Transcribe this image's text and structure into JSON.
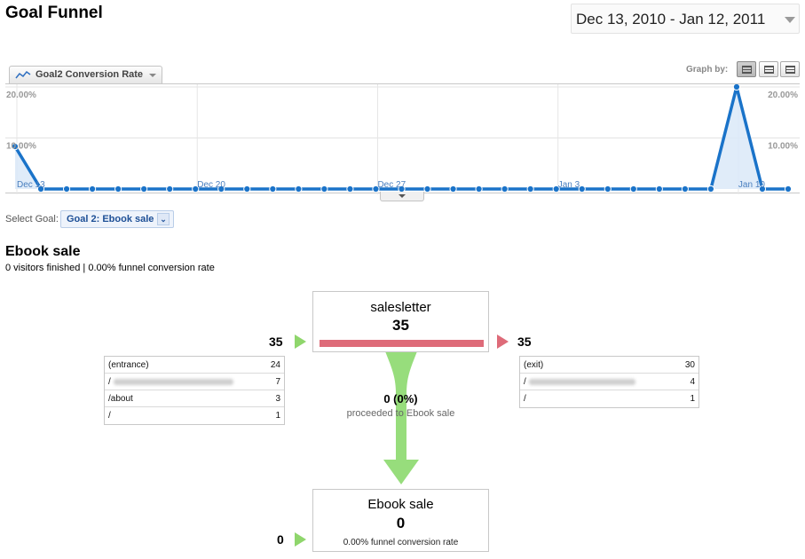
{
  "header": {
    "title": "Goal Funnel",
    "date_range": "Dec 13, 2010 - Jan 12, 2011"
  },
  "graph": {
    "metric_label": "Goal2 Conversion Rate",
    "graph_by_label": "Graph by:",
    "y_ticks_left": [
      "20.00%",
      "10.00%"
    ],
    "y_ticks_right": [
      "20.00%",
      "10.00%"
    ],
    "x_ticks": [
      "Dec 13",
      "Dec 20",
      "Dec 27",
      "Jan 3",
      "Jan 10"
    ],
    "line_color": "#1a73c9",
    "fill_color": "#dbe9f8"
  },
  "chart_data": {
    "type": "area",
    "x": [
      "Dec 13",
      "Dec 14",
      "Dec 15",
      "Dec 16",
      "Dec 17",
      "Dec 18",
      "Dec 19",
      "Dec 20",
      "Dec 21",
      "Dec 22",
      "Dec 23",
      "Dec 24",
      "Dec 25",
      "Dec 26",
      "Dec 27",
      "Dec 28",
      "Dec 29",
      "Dec 30",
      "Dec 31",
      "Jan 1",
      "Jan 2",
      "Jan 3",
      "Jan 4",
      "Jan 5",
      "Jan 6",
      "Jan 7",
      "Jan 8",
      "Jan 9",
      "Jan 10",
      "Jan 11",
      "Jan 12"
    ],
    "series": [
      {
        "values": [
          8.33,
          0,
          0,
          0,
          0,
          0,
          0,
          0,
          0,
          0,
          0,
          0,
          0,
          0,
          0,
          0,
          0,
          0,
          0,
          0,
          0,
          0,
          0,
          0,
          0,
          0,
          0,
          0,
          20,
          0,
          0
        ]
      }
    ],
    "ylim": [
      0,
      20
    ],
    "grid": true
  },
  "select_goal": {
    "label": "Select Goal:",
    "value": "Goal 2: Ebook sale"
  },
  "funnel": {
    "title": "Ebook sale",
    "summary": "0 visitors finished | 0.00% funnel conversion rate",
    "step1": {
      "name": "salesletter",
      "count": "35",
      "in_count": "35",
      "out_count": "35"
    },
    "entrances": [
      {
        "source": "(entrance)",
        "count": "24"
      },
      {
        "source": "/",
        "count": "7"
      },
      {
        "source": "/about",
        "count": "3"
      },
      {
        "source": "/",
        "count": "1"
      }
    ],
    "exits": [
      {
        "source": "(exit)",
        "count": "30"
      },
      {
        "source": "/",
        "count": "4"
      },
      {
        "source": "/",
        "count": "1"
      }
    ],
    "proceeded_count": "0 (0%)",
    "proceeded_text": "proceeded to Ebook sale",
    "step2": {
      "name": "Ebook sale",
      "count": "0",
      "in_count": "0",
      "rate": "0.00% funnel conversion rate"
    }
  }
}
